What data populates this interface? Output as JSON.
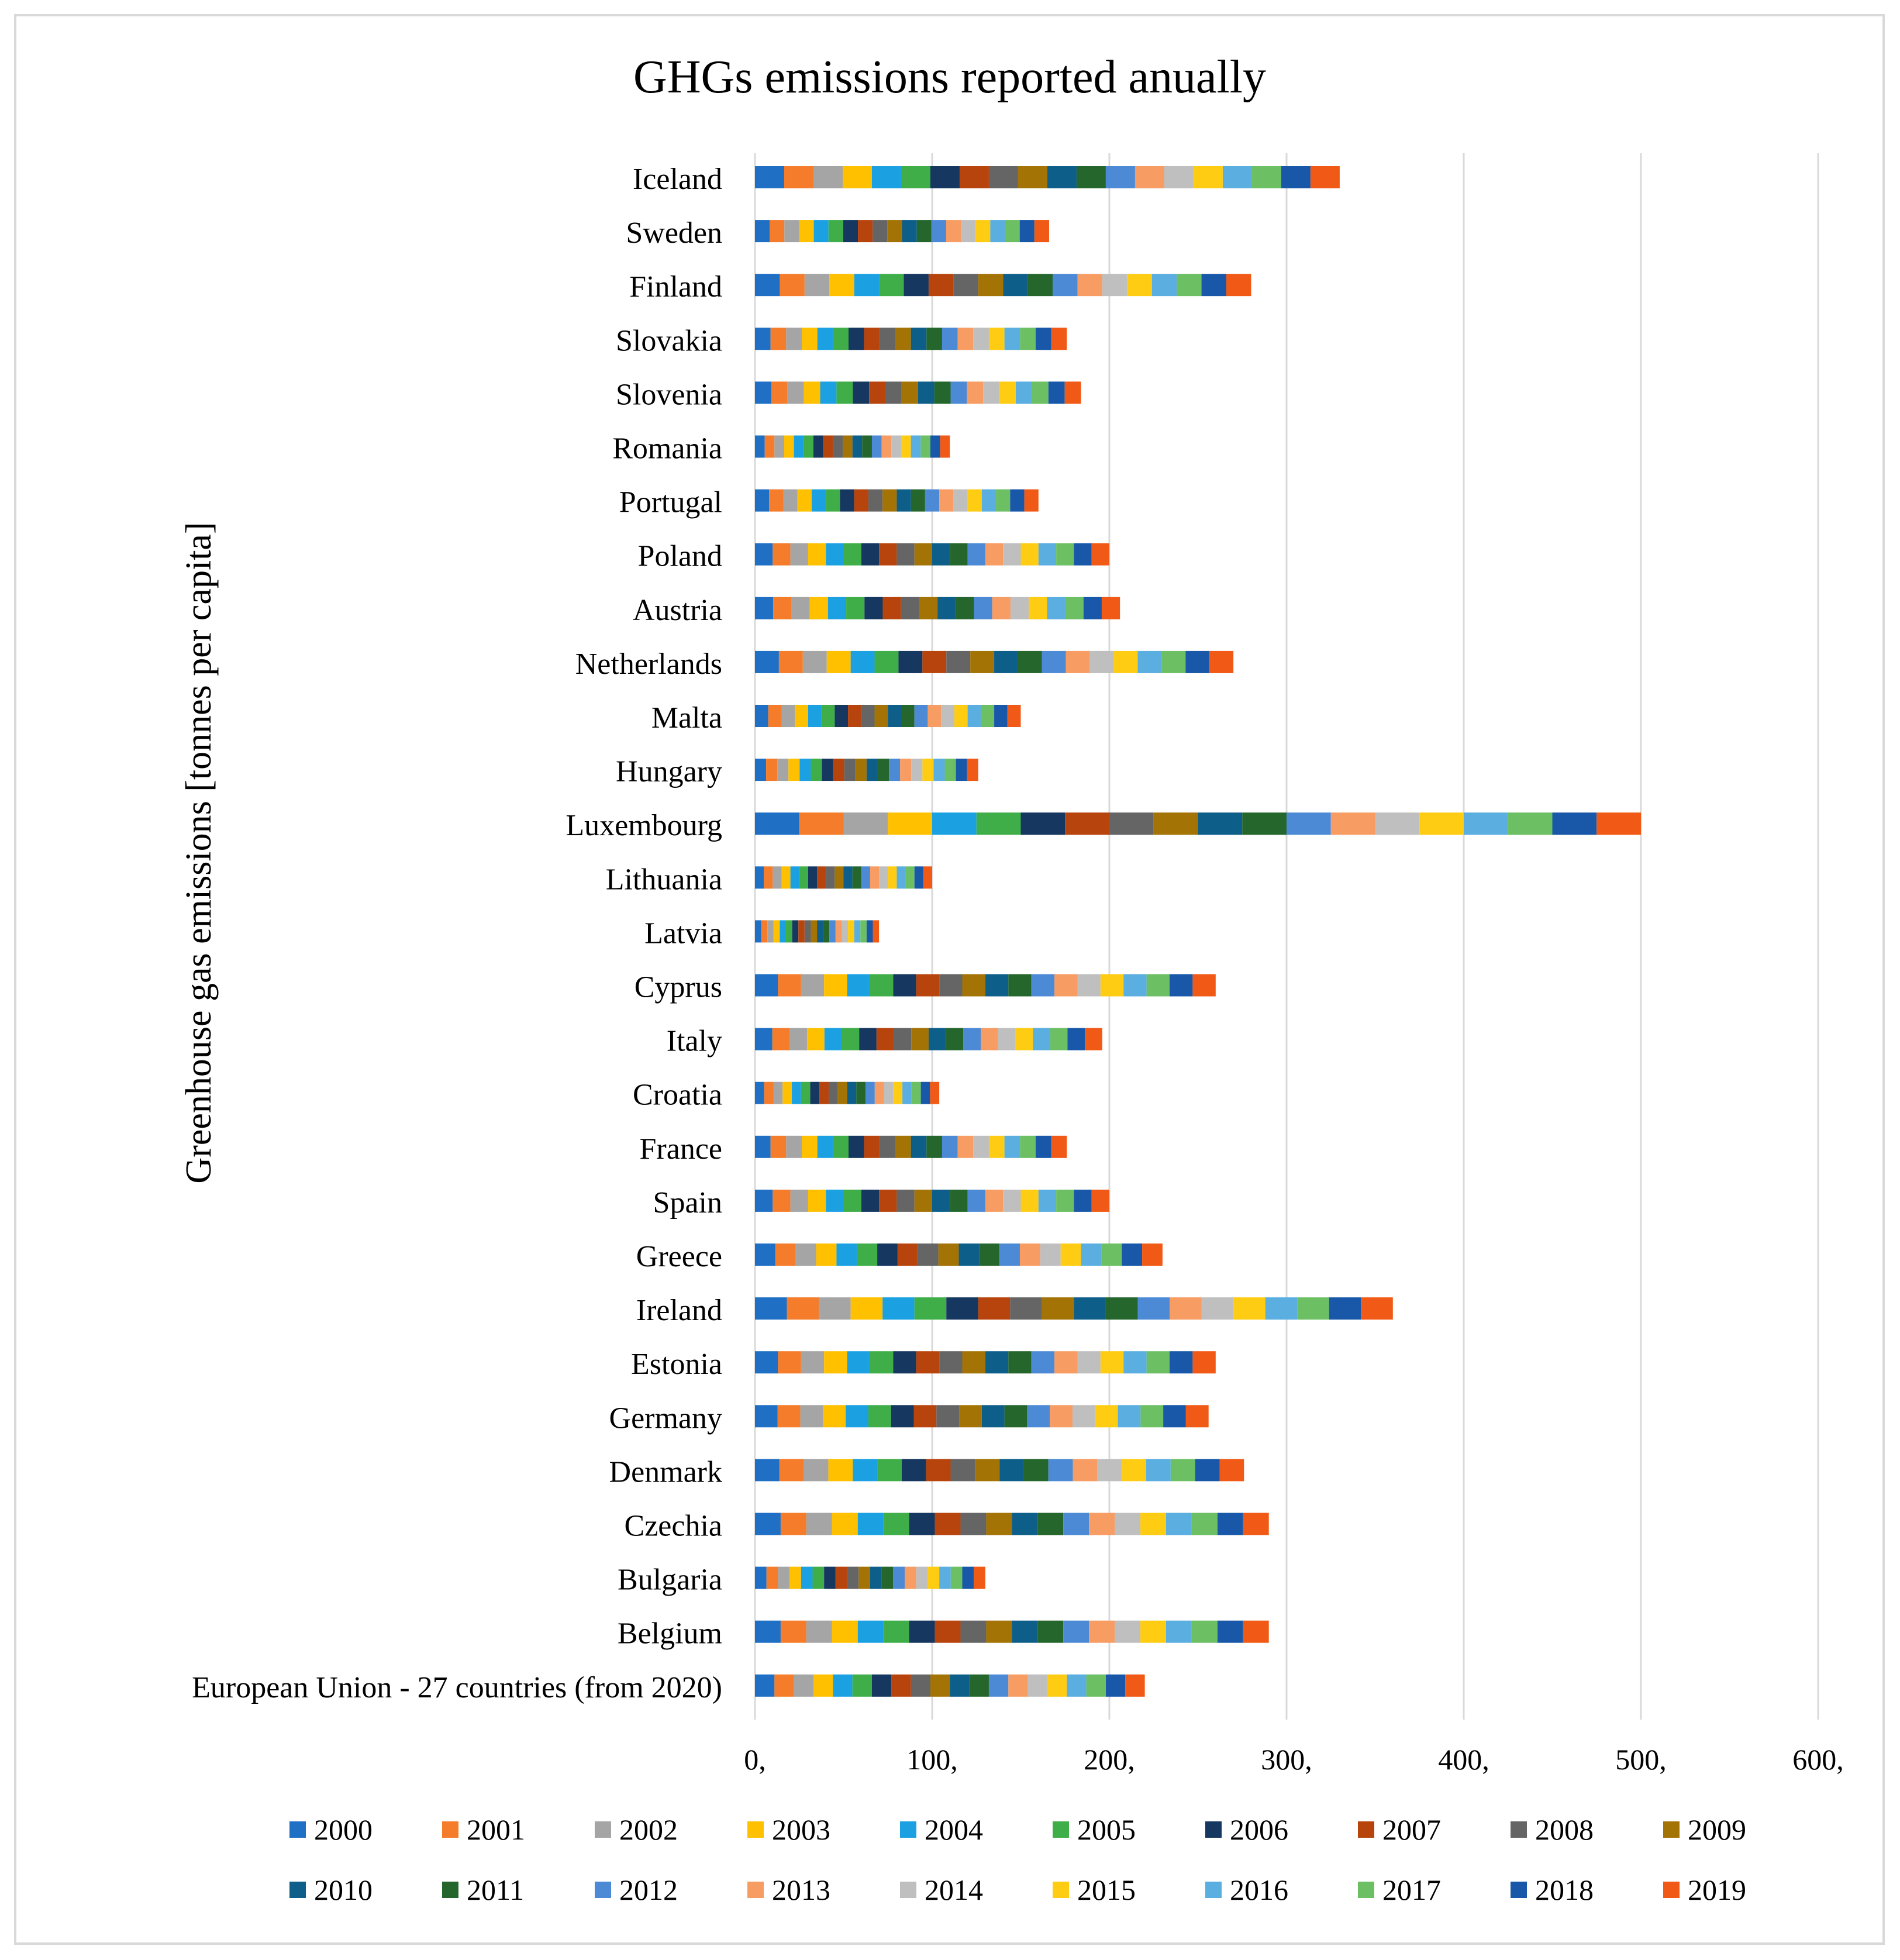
{
  "chart_data": {
    "type": "bar",
    "stacked": true,
    "orientation": "horizontal",
    "title": "GHGs emissions reported anually",
    "xlabel": "",
    "ylabel": "Greenhouse gas emissions [tonnes per capita]",
    "xlim": [
      0,
      600
    ],
    "x_ticks": [
      0,
      100,
      200,
      300,
      400,
      500,
      600
    ],
    "x_tick_labels": [
      "0,",
      "100,",
      "200,",
      "300,",
      "400,",
      "500,",
      "600,"
    ],
    "grid": true,
    "legend_position": "bottom",
    "categories": [
      "Iceland",
      "Sweden",
      "Finland",
      "Slovakia",
      "Slovenia",
      "Romania",
      "Portugal",
      "Poland",
      "Austria",
      "Netherlands",
      "Malta",
      "Hungary",
      "Luxembourg",
      "Lithuania",
      "Latvia",
      "Cyprus",
      "Italy",
      "Croatia",
      "France",
      "Spain",
      "Greece",
      "Ireland",
      "Estonia",
      "Germany",
      "Denmark",
      "Czechia",
      "Bulgaria",
      "Belgium",
      "European Union - 27 countries (from 2020)"
    ],
    "series": [
      {
        "name": "2000",
        "color": "#1f6fc5",
        "values": [
          16.5,
          8.3,
          14.0,
          8.8,
          9.2,
          5.5,
          8.0,
          10.0,
          10.3,
          13.5,
          7.5,
          6.3,
          25.0,
          5.0,
          3.5,
          13.0,
          9.8,
          5.2,
          8.8,
          10.0,
          11.5,
          18.0,
          13.0,
          12.8,
          13.8,
          14.5,
          6.5,
          14.5,
          11.0
        ]
      },
      {
        "name": "2001",
        "color": "#f47c2b",
        "values": [
          16.5,
          8.3,
          14.0,
          8.8,
          9.2,
          5.5,
          8.0,
          10.0,
          10.3,
          13.5,
          7.5,
          6.3,
          25.0,
          5.0,
          3.5,
          13.0,
          9.8,
          5.2,
          8.8,
          10.0,
          11.5,
          18.0,
          13.0,
          12.8,
          13.8,
          14.5,
          6.5,
          14.5,
          11.0
        ]
      },
      {
        "name": "2002",
        "color": "#a5a5a5",
        "values": [
          16.5,
          8.3,
          14.0,
          8.8,
          9.2,
          5.5,
          8.0,
          10.0,
          10.3,
          13.5,
          7.5,
          6.3,
          25.0,
          5.0,
          3.5,
          13.0,
          9.8,
          5.2,
          8.8,
          10.0,
          11.5,
          18.0,
          13.0,
          12.8,
          13.8,
          14.5,
          6.5,
          14.5,
          11.0
        ]
      },
      {
        "name": "2003",
        "color": "#ffc000",
        "values": [
          16.5,
          8.3,
          14.0,
          8.8,
          9.2,
          5.5,
          8.0,
          10.0,
          10.3,
          13.5,
          7.5,
          6.3,
          25.0,
          5.0,
          3.5,
          13.0,
          9.8,
          5.2,
          8.8,
          10.0,
          11.5,
          18.0,
          13.0,
          12.8,
          13.8,
          14.5,
          6.5,
          14.5,
          11.0
        ]
      },
      {
        "name": "2004",
        "color": "#1ba1e2",
        "values": [
          16.5,
          8.3,
          14.0,
          8.8,
          9.2,
          5.5,
          8.0,
          10.0,
          10.3,
          13.5,
          7.5,
          6.3,
          25.0,
          5.0,
          3.5,
          13.0,
          9.8,
          5.2,
          8.8,
          10.0,
          11.5,
          18.0,
          13.0,
          12.8,
          13.8,
          14.5,
          6.5,
          14.5,
          11.0
        ]
      },
      {
        "name": "2005",
        "color": "#3fae49",
        "values": [
          16.5,
          8.3,
          14.0,
          8.8,
          9.2,
          5.5,
          8.0,
          10.0,
          10.3,
          13.5,
          7.5,
          6.3,
          25.0,
          5.0,
          3.5,
          13.0,
          9.8,
          5.2,
          8.8,
          10.0,
          11.5,
          18.0,
          13.0,
          12.8,
          13.8,
          14.5,
          6.5,
          14.5,
          11.0
        ]
      },
      {
        "name": "2006",
        "color": "#16375f",
        "values": [
          16.5,
          8.3,
          14.0,
          8.8,
          9.2,
          5.5,
          8.0,
          10.0,
          10.3,
          13.5,
          7.5,
          6.3,
          25.0,
          5.0,
          3.5,
          13.0,
          9.8,
          5.2,
          8.8,
          10.0,
          11.5,
          18.0,
          13.0,
          12.8,
          13.8,
          14.5,
          6.5,
          14.5,
          11.0
        ]
      },
      {
        "name": "2007",
        "color": "#b8440d",
        "values": [
          16.5,
          8.3,
          14.0,
          8.8,
          9.2,
          5.5,
          8.0,
          10.0,
          10.3,
          13.5,
          7.5,
          6.3,
          25.0,
          5.0,
          3.5,
          13.0,
          9.8,
          5.2,
          8.8,
          10.0,
          11.5,
          18.0,
          13.0,
          12.8,
          13.8,
          14.5,
          6.5,
          14.5,
          11.0
        ]
      },
      {
        "name": "2008",
        "color": "#656565",
        "values": [
          16.5,
          8.3,
          14.0,
          8.8,
          9.2,
          5.5,
          8.0,
          10.0,
          10.3,
          13.5,
          7.5,
          6.3,
          25.0,
          5.0,
          3.5,
          13.0,
          9.8,
          5.2,
          8.8,
          10.0,
          11.5,
          18.0,
          13.0,
          12.8,
          13.8,
          14.5,
          6.5,
          14.5,
          11.0
        ]
      },
      {
        "name": "2009",
        "color": "#a47306",
        "values": [
          16.5,
          8.3,
          14.0,
          8.8,
          9.2,
          5.5,
          8.0,
          10.0,
          10.3,
          13.5,
          7.5,
          6.3,
          25.0,
          5.0,
          3.5,
          13.0,
          9.8,
          5.2,
          8.8,
          10.0,
          11.5,
          18.0,
          13.0,
          12.8,
          13.8,
          14.5,
          6.5,
          14.5,
          11.0
        ]
      },
      {
        "name": "2010",
        "color": "#0d5f8a",
        "values": [
          16.5,
          8.3,
          14.0,
          8.8,
          9.2,
          5.5,
          8.0,
          10.0,
          10.3,
          13.5,
          7.5,
          6.3,
          25.0,
          5.0,
          3.5,
          13.0,
          9.8,
          5.2,
          8.8,
          10.0,
          11.5,
          18.0,
          13.0,
          12.8,
          13.8,
          14.5,
          6.5,
          14.5,
          11.0
        ]
      },
      {
        "name": "2011",
        "color": "#25662c",
        "values": [
          16.5,
          8.3,
          14.0,
          8.8,
          9.2,
          5.5,
          8.0,
          10.0,
          10.3,
          13.5,
          7.5,
          6.3,
          25.0,
          5.0,
          3.5,
          13.0,
          9.8,
          5.2,
          8.8,
          10.0,
          11.5,
          18.0,
          13.0,
          12.8,
          13.8,
          14.5,
          6.5,
          14.5,
          11.0
        ]
      },
      {
        "name": "2012",
        "color": "#4d8ad6",
        "values": [
          16.5,
          8.3,
          14.0,
          8.8,
          9.2,
          5.5,
          8.0,
          10.0,
          10.3,
          13.5,
          7.5,
          6.3,
          25.0,
          5.0,
          3.5,
          13.0,
          9.8,
          5.2,
          8.8,
          10.0,
          11.5,
          18.0,
          13.0,
          12.8,
          13.8,
          14.5,
          6.5,
          14.5,
          11.0
        ]
      },
      {
        "name": "2013",
        "color": "#f79c63",
        "values": [
          16.5,
          8.3,
          14.0,
          8.8,
          9.2,
          5.5,
          8.0,
          10.0,
          10.3,
          13.5,
          7.5,
          6.3,
          25.0,
          5.0,
          3.5,
          13.0,
          9.8,
          5.2,
          8.8,
          10.0,
          11.5,
          18.0,
          13.0,
          12.8,
          13.8,
          14.5,
          6.5,
          14.5,
          11.0
        ]
      },
      {
        "name": "2014",
        "color": "#bfbfbf",
        "values": [
          16.5,
          8.3,
          14.0,
          8.8,
          9.2,
          5.5,
          8.0,
          10.0,
          10.3,
          13.5,
          7.5,
          6.3,
          25.0,
          5.0,
          3.5,
          13.0,
          9.8,
          5.2,
          8.8,
          10.0,
          11.5,
          18.0,
          13.0,
          12.8,
          13.8,
          14.5,
          6.5,
          14.5,
          11.0
        ]
      },
      {
        "name": "2015",
        "color": "#ffcc14",
        "values": [
          16.5,
          8.3,
          14.0,
          8.8,
          9.2,
          5.5,
          8.0,
          10.0,
          10.3,
          13.5,
          7.5,
          6.3,
          25.0,
          5.0,
          3.5,
          13.0,
          9.8,
          5.2,
          8.8,
          10.0,
          11.5,
          18.0,
          13.0,
          12.8,
          13.8,
          14.5,
          6.5,
          14.5,
          11.0
        ]
      },
      {
        "name": "2016",
        "color": "#5aaee0",
        "values": [
          16.5,
          8.3,
          14.0,
          8.8,
          9.2,
          5.5,
          8.0,
          10.0,
          10.3,
          13.5,
          7.5,
          6.3,
          25.0,
          5.0,
          3.5,
          13.0,
          9.8,
          5.2,
          8.8,
          10.0,
          11.5,
          18.0,
          13.0,
          12.8,
          13.8,
          14.5,
          6.5,
          14.5,
          11.0
        ]
      },
      {
        "name": "2017",
        "color": "#6cbf63",
        "values": [
          16.5,
          8.3,
          14.0,
          8.8,
          9.2,
          5.5,
          8.0,
          10.0,
          10.3,
          13.5,
          7.5,
          6.3,
          25.0,
          5.0,
          3.5,
          13.0,
          9.8,
          5.2,
          8.8,
          10.0,
          11.5,
          18.0,
          13.0,
          12.8,
          13.8,
          14.5,
          6.5,
          14.5,
          11.0
        ]
      },
      {
        "name": "2018",
        "color": "#1958a8",
        "values": [
          16.5,
          8.3,
          14.0,
          8.8,
          9.2,
          5.5,
          8.0,
          10.0,
          10.3,
          13.5,
          7.5,
          6.3,
          25.0,
          5.0,
          3.5,
          13.0,
          9.8,
          5.2,
          8.8,
          10.0,
          11.5,
          18.0,
          13.0,
          12.8,
          13.8,
          14.5,
          6.5,
          14.5,
          11.0
        ]
      },
      {
        "name": "2019",
        "color": "#f05a16",
        "values": [
          16.5,
          8.3,
          14.0,
          8.8,
          9.2,
          5.5,
          8.0,
          10.0,
          10.3,
          13.5,
          7.5,
          6.3,
          25.0,
          5.0,
          3.5,
          13.0,
          9.8,
          5.2,
          8.8,
          10.0,
          11.5,
          18.0,
          13.0,
          12.8,
          13.8,
          14.5,
          6.5,
          14.5,
          11.0
        ]
      }
    ]
  }
}
